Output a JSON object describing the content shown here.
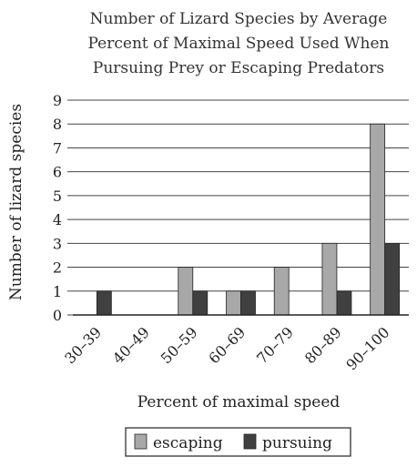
{
  "chart_data": {
    "type": "bar",
    "title": "Number of Lizard Species by Average Percent of Maximal Speed Used When Pursuing Prey or Escaping Predators",
    "title_lines": [
      "Number of Lizard Species by Average",
      "Percent of Maximal Speed Used When",
      "Pursuing Prey or Escaping Predators"
    ],
    "xlabel": "Percent of maximal speed",
    "ylabel": "Number of lizard species",
    "categories": [
      "30–39",
      "40–49",
      "50–59",
      "60–69",
      "70–79",
      "80–89",
      "90–100"
    ],
    "series": [
      {
        "name": "escaping",
        "color": "#a8a8a8",
        "values": [
          0,
          0,
          2,
          1,
          2,
          3,
          8
        ]
      },
      {
        "name": "pursuing",
        "color": "#404040",
        "values": [
          1,
          0,
          1,
          1,
          0,
          1,
          3
        ]
      }
    ],
    "ylim": [
      0,
      9
    ],
    "yticks": [
      0,
      1,
      2,
      3,
      4,
      5,
      6,
      7,
      8,
      9
    ],
    "grid": true,
    "legend_position": "bottom"
  }
}
